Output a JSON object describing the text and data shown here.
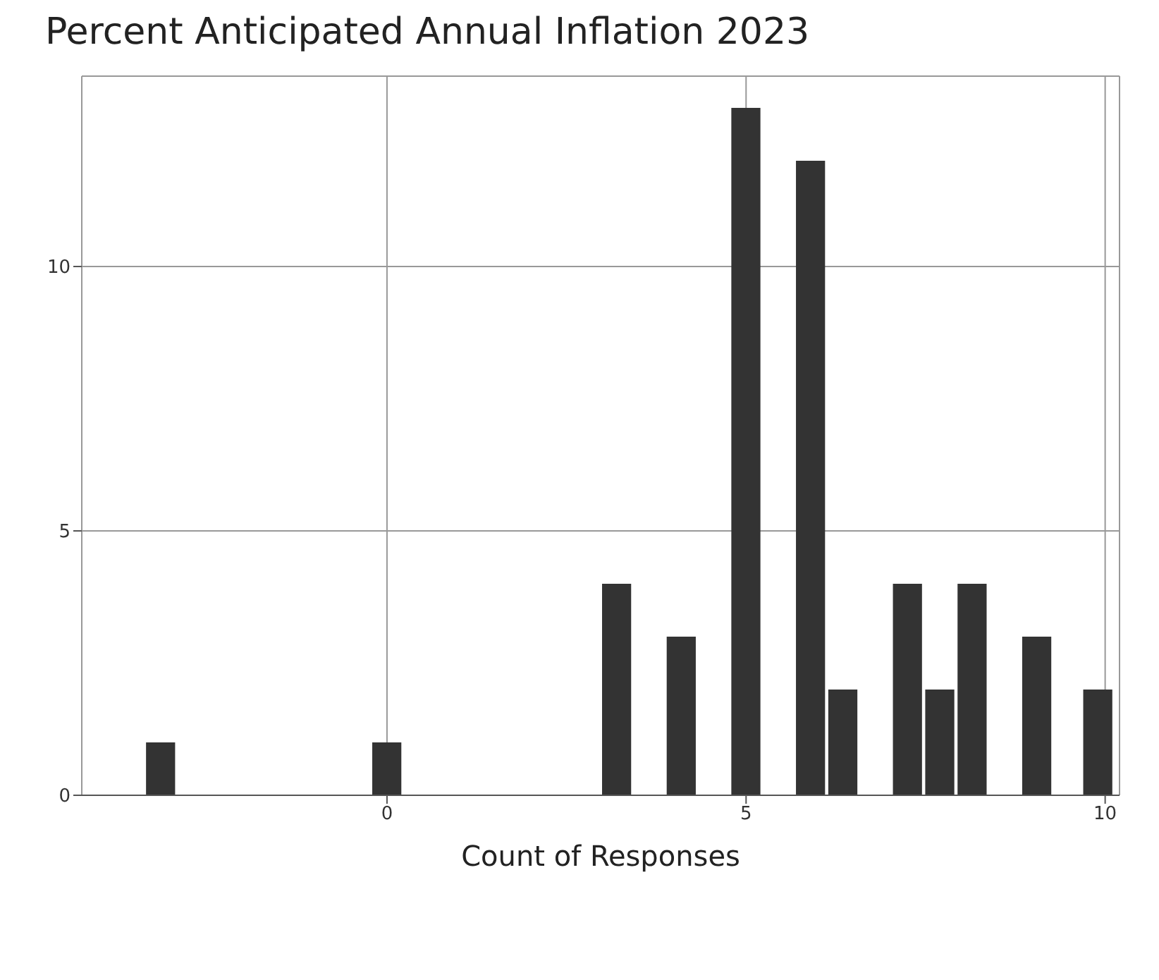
{
  "chart_data": {
    "type": "bar",
    "title": "Percent Anticipated Annual Inflation 2023",
    "xlabel": "Count of Responses",
    "x": [
      -3.15,
      0,
      3.2,
      4.1,
      5,
      5.9,
      6.35,
      7.25,
      7.7,
      8.15,
      9.05,
      9.9
    ],
    "values": [
      1,
      1,
      4,
      3,
      13,
      12,
      2,
      4,
      2,
      4,
      3,
      2
    ],
    "color": "#333333",
    "xlim": [
      -4.25,
      10.2
    ],
    "xticks": [
      0,
      5,
      10
    ],
    "ylim": [
      0,
      13.6
    ],
    "yticks": [
      0,
      5,
      10
    ],
    "grid": true,
    "legend": false
  }
}
